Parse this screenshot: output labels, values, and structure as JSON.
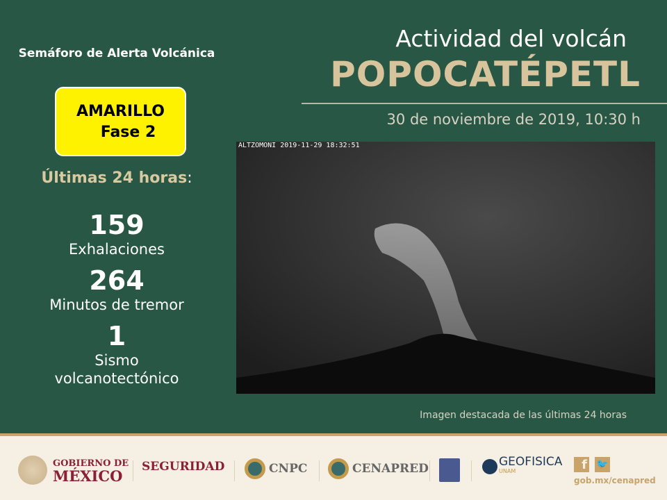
{
  "alert": {
    "title": "Semáforo de Alerta Volcánica",
    "level": "AMARILLO",
    "phase": "Fase 2",
    "color": "#fff200"
  },
  "last24": {
    "label": "Últimas 24 horas",
    "colon": ":"
  },
  "stats": [
    {
      "value": "159",
      "label": "Exhalaciones"
    },
    {
      "value": "264",
      "label": "Minutos de tremor"
    },
    {
      "value": "1",
      "label": "Sismo volcanotectónico"
    }
  ],
  "header": {
    "line1": "Actividad del volcán",
    "line2": "POPOCATÉPETL",
    "date": "30 de noviembre de 2019, 10:30 h"
  },
  "photo": {
    "stamp": "ALTZOMONI 2019-11-29 18:32:51",
    "caption": "Imagen destacada de las últimas 24 horas"
  },
  "footer": {
    "gob1": "GOBIERNO DE",
    "gob2": "MÉXICO",
    "seguridad": "SEGURIDAD",
    "cnpc": "CNPC",
    "cenapred": "CENAPRED",
    "geofisica": "GEOFISICA",
    "unam": "UNAM",
    "url": "gob.mx/cenapred"
  }
}
